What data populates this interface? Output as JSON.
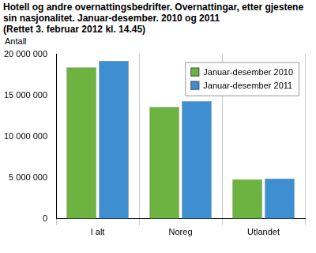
{
  "chart_data": {
    "type": "bar",
    "title": "Hotell og andre overnattingsbedrifter. Overnattingar, etter gjestene sin nasjonalitet. Januar-desember. 2010 og 2011",
    "subtitle": "(Rettet 3. februar 2012 kl. 14.45)",
    "y_label": "Antall",
    "categories": [
      "I alt",
      "Noreg",
      "Utlandet"
    ],
    "series": [
      {
        "name": "Januar-desember 2010",
        "color": "#6cb33f",
        "values": [
          18400000,
          13600000,
          4800000
        ]
      },
      {
        "name": "Januar-desember 2011",
        "color": "#3d8fd1",
        "values": [
          19200000,
          14300000,
          4900000
        ]
      }
    ],
    "ylim": [
      0,
      20000000
    ],
    "yticks": [
      0,
      {
        "value": 5000000,
        "label": "5 000 000"
      },
      {
        "value": 10000000,
        "label": "10 000 000"
      },
      {
        "value": 15000000,
        "label": "15 000 000"
      },
      {
        "value": 20000000,
        "label": "20 000 000"
      }
    ],
    "grid": true,
    "legend": "upper right"
  }
}
